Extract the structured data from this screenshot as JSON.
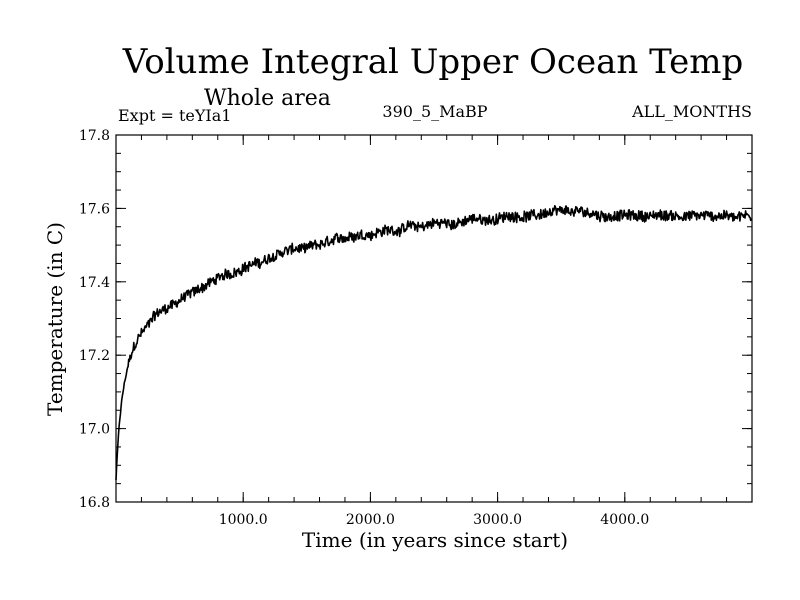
{
  "chart_data": {
    "type": "line",
    "title": "Volume Integral Upper Ocean Temp",
    "subtitle": "Whole area",
    "experiment_label": "Expt = teYIa1",
    "run_label": "390_5_MaBP",
    "months_label": "ALL_MONTHS",
    "xlabel": "Time (in years since start)",
    "ylabel": "Temperature (in C)",
    "xlim": [
      0,
      5000
    ],
    "ylim": [
      16.8,
      17.8
    ],
    "x_ticks": [
      1000,
      2000,
      3000,
      4000
    ],
    "x_tick_labels": [
      "1000.0",
      "2000.0",
      "3000.0",
      "4000.0"
    ],
    "y_ticks": [
      16.8,
      17.0,
      17.2,
      17.4,
      17.6,
      17.8
    ],
    "y_tick_labels": [
      "16.8",
      "17.0",
      "17.2",
      "17.4",
      "17.6",
      "17.8"
    ],
    "grid": false,
    "series": [
      {
        "name": "Volume integral upper ocean temperature",
        "x": [
          0,
          10,
          25,
          50,
          75,
          100,
          150,
          200,
          250,
          300,
          400,
          500,
          600,
          700,
          800,
          900,
          1000,
          1100,
          1200,
          1300,
          1400,
          1500,
          1600,
          1700,
          1800,
          1900,
          2000,
          2100,
          2200,
          2300,
          2400,
          2500,
          2600,
          2700,
          2800,
          2900,
          3000,
          3100,
          3200,
          3300,
          3400,
          3500,
          3600,
          3700,
          3800,
          3900,
          4000,
          4100,
          4200,
          4300,
          4400,
          4500,
          4600,
          4700,
          4800,
          4900,
          5000
        ],
        "values": [
          16.86,
          16.93,
          17.01,
          17.09,
          17.14,
          17.18,
          17.23,
          17.26,
          17.28,
          17.31,
          17.33,
          17.35,
          17.37,
          17.39,
          17.41,
          17.42,
          17.44,
          17.45,
          17.46,
          17.48,
          17.49,
          17.49,
          17.5,
          17.51,
          17.52,
          17.53,
          17.53,
          17.54,
          17.54,
          17.55,
          17.55,
          17.56,
          17.56,
          17.56,
          17.57,
          17.57,
          17.57,
          17.58,
          17.58,
          17.58,
          17.59,
          17.59,
          17.59,
          17.59,
          17.58,
          17.58,
          17.58,
          17.58,
          17.58,
          17.58,
          17.58,
          17.58,
          17.58,
          17.58,
          17.58,
          17.58,
          17.58
        ],
        "color": "#000000"
      }
    ]
  }
}
